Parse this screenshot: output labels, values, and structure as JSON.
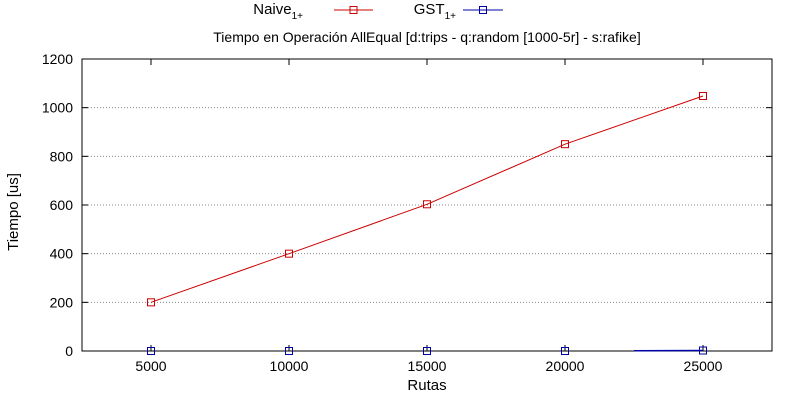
{
  "chart_data": {
    "type": "line",
    "title": "Tiempo en Operación AllEqual [d:trips - q:random [1000-5r] - s:rafike]",
    "xlabel": "Rutas",
    "ylabel": "Tiempo [us]",
    "x": [
      5000,
      10000,
      15000,
      20000,
      25000
    ],
    "xlim": [
      2500,
      27500
    ],
    "ylim": [
      0,
      1200
    ],
    "xticks": [
      5000,
      10000,
      15000,
      20000,
      25000
    ],
    "yticks": [
      0,
      200,
      400,
      600,
      800,
      1000,
      1200
    ],
    "grid": "horizontal-dotted",
    "legend_position": "top-center",
    "series": [
      {
        "name": "Naive",
        "name_sub": "1+",
        "color": "#cc0000",
        "values": [
          200,
          400,
          603,
          850,
          1048
        ],
        "marker": "square-open"
      },
      {
        "name": "GST",
        "name_sub": "1+",
        "color": "#0000aa",
        "values": [
          0,
          0,
          0,
          0,
          2
        ],
        "marker": "square-open",
        "line_visible_from_x": 22500
      }
    ]
  }
}
